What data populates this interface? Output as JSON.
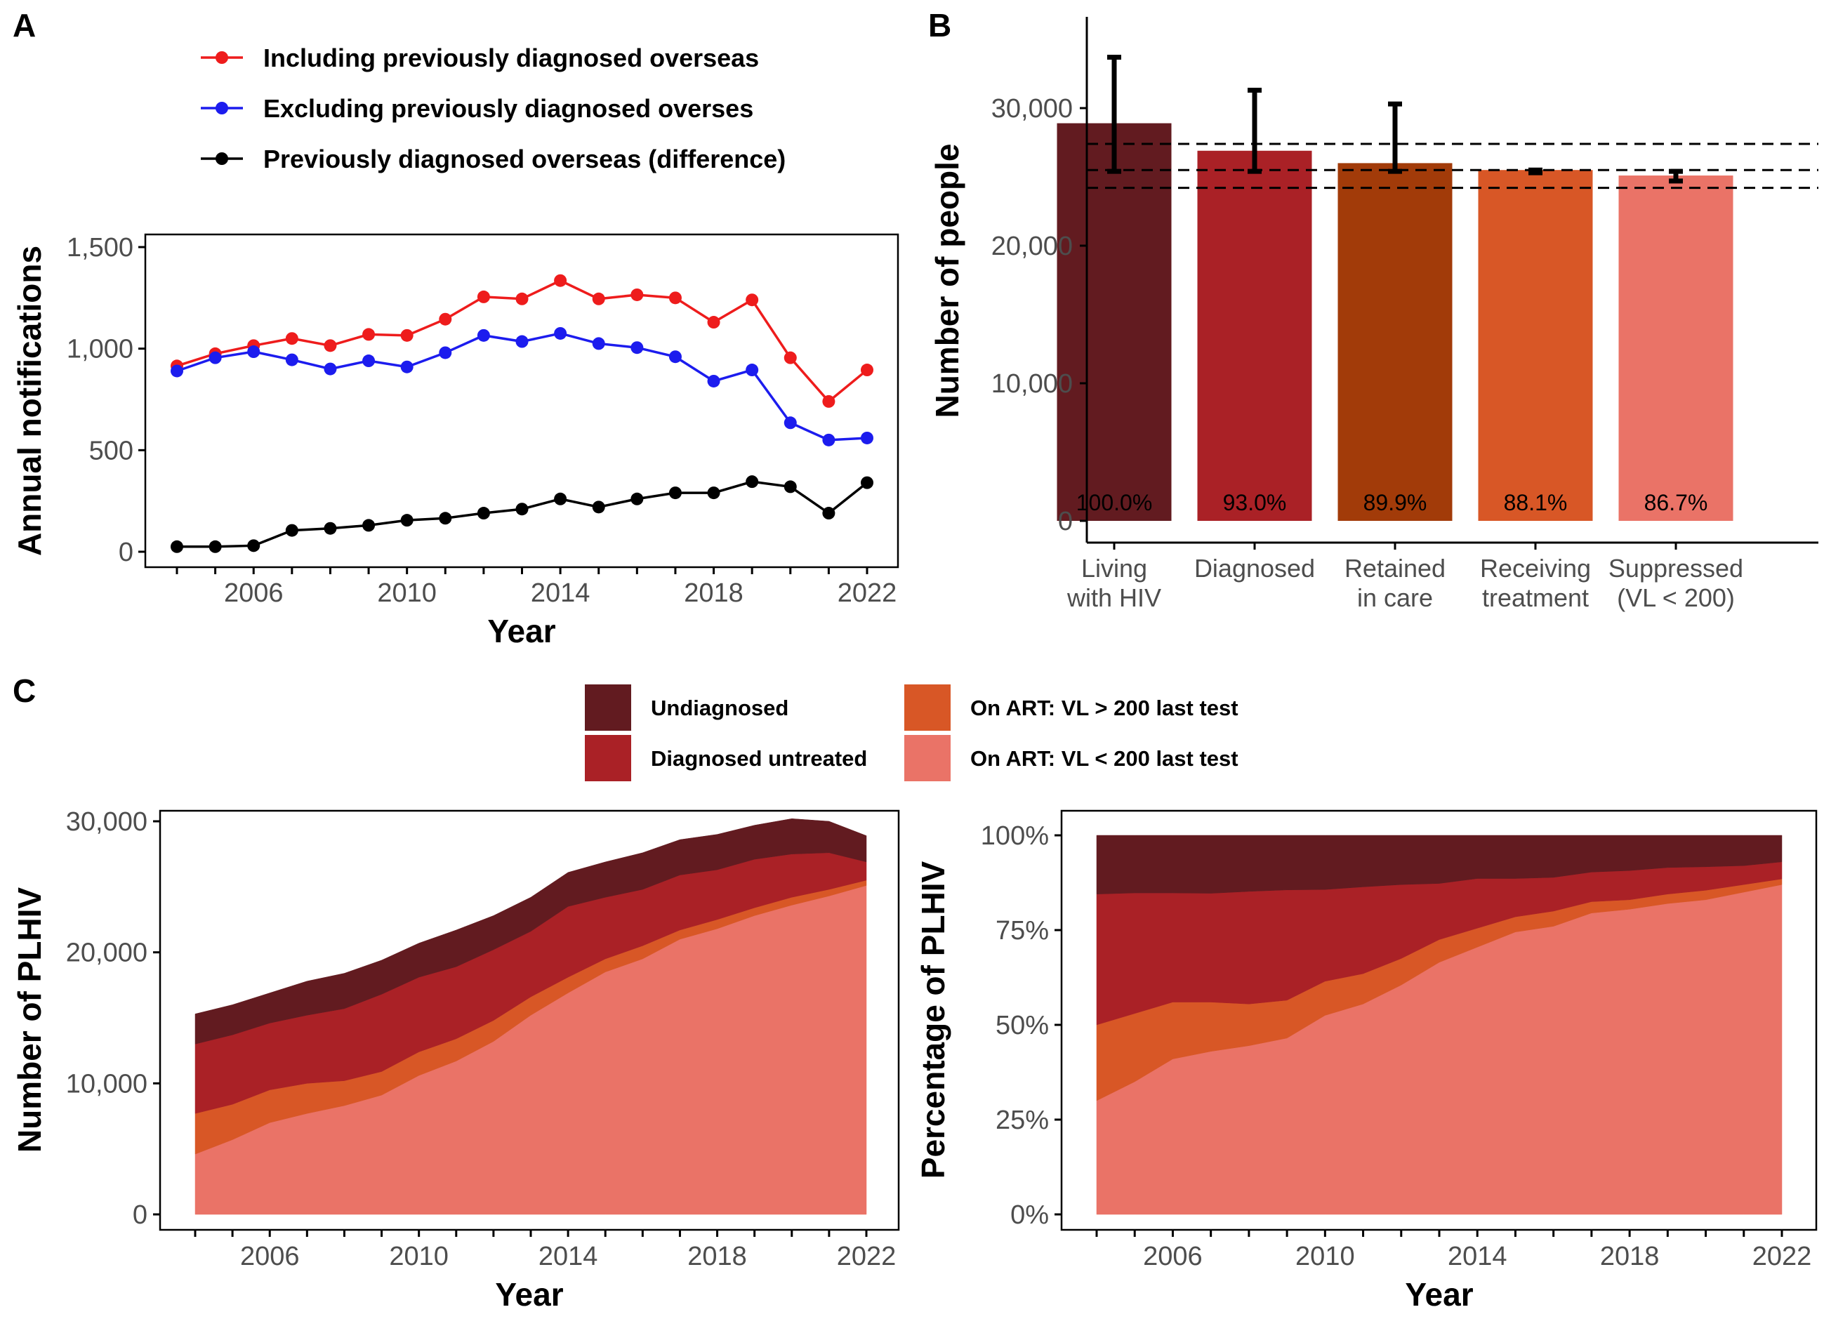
{
  "colors": {
    "red": "#ee1c1c",
    "blue": "#1c1cee",
    "black": "#000000",
    "undiagnosed": "#621b20",
    "diagnosed_untreated": "#aa2126",
    "retained": "#a23b09",
    "art_vl_high": "#d85726",
    "art_vl_low": "#ea7367"
  },
  "panel_labels": {
    "a": "A",
    "b": "B",
    "c": "C"
  },
  "chart_data": [
    {
      "id": "A",
      "type": "line",
      "xlabel": "Year",
      "ylabel": "Annual notifications",
      "xlim": [
        2004,
        2022
      ],
      "ylim": [
        0,
        1550
      ],
      "x_ticks": [
        2006,
        2010,
        2014,
        2018,
        2022
      ],
      "x_tick_labels": [
        "2006",
        "2010",
        "2014",
        "2018",
        "2022"
      ],
      "x_minor_ticks": [
        2004,
        2005,
        2006,
        2007,
        2008,
        2009,
        2010,
        2011,
        2012,
        2013,
        2014,
        2015,
        2016,
        2017,
        2018,
        2019,
        2020,
        2021,
        2022
      ],
      "y_ticks": [
        0,
        500,
        1000,
        1500
      ],
      "y_tick_labels": [
        "0",
        "500",
        "1,000",
        "1,500"
      ],
      "legend_position": "top",
      "x": [
        2004,
        2005,
        2006,
        2007,
        2008,
        2009,
        2010,
        2011,
        2012,
        2013,
        2014,
        2015,
        2016,
        2017,
        2018,
        2019,
        2020,
        2021,
        2022
      ],
      "series": [
        {
          "name": "Including previously diagnosed overseas",
          "color": "#ee1c1c",
          "values": [
            915,
            975,
            1015,
            1050,
            1015,
            1070,
            1065,
            1145,
            1255,
            1245,
            1335,
            1245,
            1265,
            1250,
            1130,
            1240,
            955,
            740,
            895
          ]
        },
        {
          "name": "Excluding previously diagnosed overses",
          "color": "#1c1cee",
          "values": [
            890,
            955,
            985,
            945,
            900,
            940,
            910,
            980,
            1065,
            1035,
            1075,
            1025,
            1005,
            960,
            840,
            895,
            635,
            550,
            560
          ]
        },
        {
          "name": "Previously diagnosed overseas (difference)",
          "color": "#000000",
          "values": [
            25,
            25,
            30,
            105,
            115,
            130,
            155,
            165,
            190,
            210,
            260,
            220,
            260,
            290,
            290,
            345,
            320,
            190,
            340
          ]
        }
      ]
    },
    {
      "id": "B",
      "type": "bar",
      "xlabel": "",
      "ylabel": "Number of people",
      "ylim": [
        0,
        36000
      ],
      "y_ticks": [
        0,
        10000,
        20000,
        30000
      ],
      "y_tick_labels": [
        "0",
        "10,000",
        "20,000",
        "30,000"
      ],
      "categories": [
        [
          "Living",
          "with HIV"
        ],
        [
          "Diagnosed"
        ],
        [
          "Retained",
          "in care"
        ],
        [
          "Receiving",
          "treatment"
        ],
        [
          "Suppressed",
          "(VL < 200)"
        ]
      ],
      "values": [
        28900,
        26900,
        26000,
        25500,
        25100
      ],
      "error_low": [
        25400,
        25400,
        25400,
        25300,
        24700
      ],
      "error_high": [
        33700,
        31300,
        30300,
        25500,
        25400
      ],
      "bar_colors": [
        "#621b20",
        "#aa2126",
        "#a23b09",
        "#d85726",
        "#ea7367"
      ],
      "bar_labels": [
        "100.0%",
        "93.0%",
        "89.9%",
        "88.1%",
        "86.7%"
      ],
      "reference_lines": [
        27400,
        25500,
        24200
      ]
    },
    {
      "id": "C-left",
      "type": "area",
      "stacked": true,
      "xlabel": "Year",
      "ylabel": "Number of PLHIV",
      "xlim": [
        2004,
        2022
      ],
      "ylim": [
        0,
        30000
      ],
      "x_ticks": [
        2006,
        2010,
        2014,
        2018,
        2022
      ],
      "x_tick_labels": [
        "2006",
        "2010",
        "2014",
        "2018",
        "2022"
      ],
      "y_ticks": [
        0,
        10000,
        20000,
        30000
      ],
      "y_tick_labels": [
        "0",
        "10,000",
        "20,000",
        "30,000"
      ],
      "x": [
        2004,
        2005,
        2006,
        2007,
        2008,
        2009,
        2010,
        2011,
        2012,
        2013,
        2014,
        2015,
        2016,
        2017,
        2018,
        2019,
        2020,
        2021,
        2022
      ],
      "series": [
        {
          "name": "On ART: VL < 200 last test",
          "color": "#ea7367",
          "values": [
            4600,
            5700,
            7000,
            7700,
            8300,
            9100,
            10600,
            11700,
            13200,
            15200,
            16900,
            18500,
            19500,
            21000,
            21800,
            22800,
            23600,
            24300,
            25100
          ]
        },
        {
          "name": "On ART:  VL > 200 last test",
          "color": "#d85726",
          "values": [
            3100,
            2700,
            2500,
            2300,
            1900,
            1800,
            1800,
            1700,
            1600,
            1400,
            1200,
            1000,
            1000,
            700,
            700,
            600,
            600,
            500,
            400
          ]
        },
        {
          "name": "Diagnosed untreated",
          "color": "#aa2126",
          "values": [
            5300,
            5300,
            5100,
            5200,
            5500,
            5900,
            5700,
            5500,
            5400,
            5000,
            5400,
            4700,
            4300,
            4200,
            3800,
            3700,
            3300,
            2800,
            1400
          ]
        },
        {
          "name": "Undiagnosed",
          "color": "#621b20",
          "values": [
            2300,
            2300,
            2300,
            2600,
            2700,
            2600,
            2600,
            2800,
            2600,
            2600,
            2600,
            2700,
            2800,
            2700,
            2700,
            2600,
            2700,
            2400,
            2000
          ]
        }
      ]
    },
    {
      "id": "C-right",
      "type": "area",
      "stacked": true,
      "xlabel": "Year",
      "ylabel": "Percentage of PLHIV",
      "xlim": [
        2004,
        2022
      ],
      "ylim": [
        0,
        100
      ],
      "x_ticks": [
        2006,
        2010,
        2014,
        2018,
        2022
      ],
      "x_tick_labels": [
        "2006",
        "2010",
        "2014",
        "2018",
        "2022"
      ],
      "y_ticks": [
        0,
        25,
        50,
        75,
        100
      ],
      "y_tick_labels": [
        "0%",
        "25%",
        "50%",
        "75%",
        "100%"
      ],
      "x": [
        2004,
        2005,
        2006,
        2007,
        2008,
        2009,
        2010,
        2011,
        2012,
        2013,
        2014,
        2015,
        2016,
        2017,
        2018,
        2019,
        2020,
        2021,
        2022
      ],
      "series": [
        {
          "name": "On ART: VL < 200 last test",
          "color": "#ea7367",
          "values": [
            30,
            35,
            41,
            43,
            44.5,
            46.5,
            52.5,
            55.5,
            60.5,
            66.5,
            70.5,
            74.5,
            76,
            79.5,
            80.5,
            82,
            83,
            85,
            87
          ]
        },
        {
          "name": "On ART:  VL > 200 last test",
          "color": "#d85726",
          "values": [
            20,
            18,
            15,
            13,
            11,
            10,
            9,
            8,
            7,
            6,
            5,
            4,
            4,
            3,
            2.5,
            2.5,
            2.5,
            2,
            1.5
          ]
        },
        {
          "name": "Diagnosed untreated",
          "color": "#aa2126",
          "values": [
            34.5,
            31.8,
            28.8,
            28.7,
            29.7,
            29.1,
            24.2,
            22.9,
            19.5,
            14.8,
            13.1,
            10.1,
            8.9,
            7.8,
            7.7,
            7,
            6.2,
            5,
            4.5
          ]
        },
        {
          "name": "Undiagnosed",
          "color": "#621b20",
          "values": [
            15.5,
            15.2,
            15.2,
            15.3,
            14.8,
            14.4,
            14.3,
            13.6,
            13,
            12.7,
            11.4,
            11.4,
            11.1,
            9.7,
            9.3,
            8.5,
            8.3,
            8,
            7
          ]
        }
      ]
    }
  ],
  "legend_c": {
    "items": [
      {
        "name": "Undiagnosed",
        "color": "#621b20"
      },
      {
        "name": "Diagnosed untreated",
        "color": "#aa2126"
      },
      {
        "name": "On ART:  VL > 200 last test",
        "color": "#d85726"
      },
      {
        "name": "On ART: VL < 200 last test",
        "color": "#ea7367"
      }
    ]
  }
}
